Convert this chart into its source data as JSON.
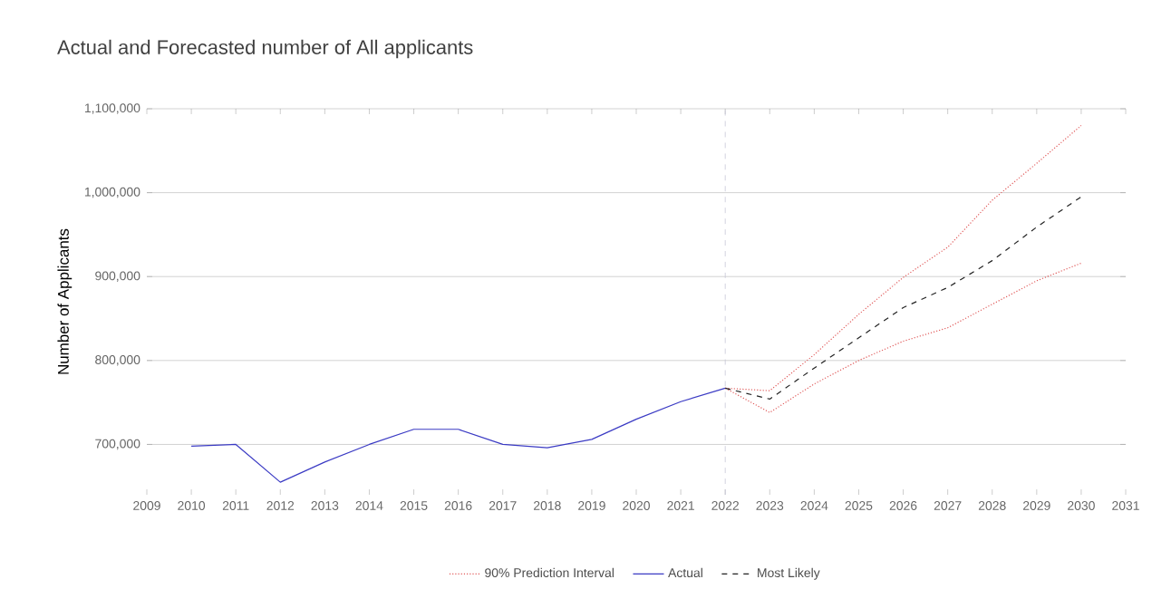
{
  "chart_data": {
    "type": "line",
    "title": "Actual and Forecasted number of All applicants",
    "ylabel": "Number of Applicants",
    "x": [
      2010,
      2011,
      2012,
      2013,
      2014,
      2015,
      2016,
      2017,
      2018,
      2019,
      2020,
      2021,
      2022
    ],
    "series": [
      {
        "name": "90% Prediction Interval",
        "color": "#e05a5a",
        "line_style": "dotted",
        "x": [
          2022,
          2023,
          2024,
          2025,
          2026,
          2027,
          2028,
          2029,
          2030
        ],
        "values": [
          767000,
          764000,
          807000,
          855000,
          899000,
          935000,
          991000,
          1035000,
          1080000
        ]
      },
      {
        "color": "#e05a5a",
        "line_style": "dotted",
        "x": [
          2022,
          2023,
          2024,
          2025,
          2026,
          2027,
          2028,
          2029,
          2030
        ],
        "values": [
          767000,
          738000,
          772000,
          800000,
          823000,
          839000,
          867000,
          895000,
          916000
        ]
      },
      {
        "name": "Actual",
        "color": "#3b3bc4",
        "line_style": "solid",
        "values": [
          698000,
          700000,
          655000,
          679000,
          700000,
          718000,
          718000,
          700000,
          696000,
          706000,
          730000,
          751000,
          767000
        ]
      },
      {
        "name": "Most Likely",
        "color": "#222222",
        "line_style": "dashed",
        "x": [
          2022,
          2023,
          2024,
          2025,
          2026,
          2027,
          2028,
          2029,
          2030
        ],
        "values": [
          767000,
          754000,
          791000,
          827000,
          863000,
          887000,
          919000,
          959000,
          995000
        ]
      }
    ],
    "xlim": [
      2009,
      2031
    ],
    "xticks": [
      2009,
      2010,
      2011,
      2012,
      2013,
      2014,
      2015,
      2016,
      2017,
      2018,
      2019,
      2020,
      2021,
      2022,
      2023,
      2024,
      2025,
      2026,
      2027,
      2028,
      2029,
      2030,
      2031
    ],
    "ylim": [
      640000,
      1100000
    ],
    "yticks": [
      {
        "value": 700000,
        "label": "700,000"
      },
      {
        "value": 800000,
        "label": "800,000"
      },
      {
        "value": 900000,
        "label": "900,000"
      },
      {
        "value": 1000000,
        "label": "1,000,000"
      },
      {
        "value": 1100000,
        "label": "1,100,000"
      }
    ],
    "ref_lines": [
      {
        "axis": "x",
        "value": 2022,
        "color": "#c8c8d8",
        "line_style": "dashed"
      }
    ],
    "grid": "y",
    "legend": "bottom"
  }
}
